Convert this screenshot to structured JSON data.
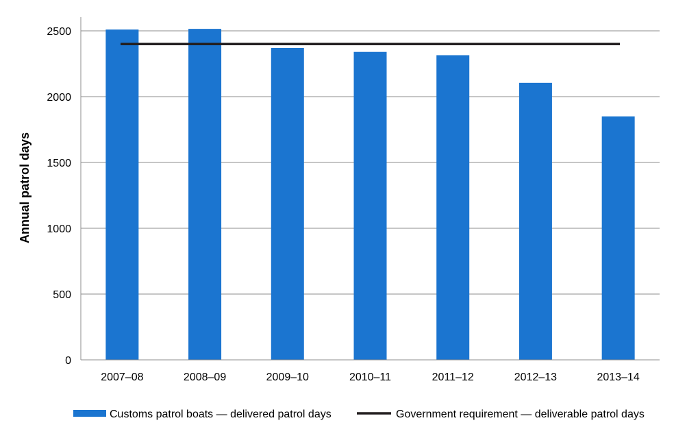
{
  "chart_data": {
    "type": "bar",
    "title": "",
    "xlabel": "",
    "ylabel": "Annual patrol days",
    "ylim": [
      0,
      2500
    ],
    "yticks": [
      0,
      500,
      1000,
      1500,
      2000,
      2500
    ],
    "grid": true,
    "legend_position": "bottom",
    "categories": [
      "2007–08",
      "2008–09",
      "2009–10",
      "2010–11",
      "2011–12",
      "2012–13",
      "2013–14"
    ],
    "series": [
      {
        "name": "Customs patrol boats — delivered patrol days",
        "type": "bar",
        "color": "#1b75d0",
        "values": [
          2510,
          2515,
          2370,
          2340,
          2315,
          2105,
          1850
        ]
      },
      {
        "name": "Government requirement — deliverable patrol days",
        "type": "line",
        "color": "#231f20",
        "values": [
          2400,
          2400,
          2400,
          2400,
          2400,
          2400,
          2400
        ]
      }
    ]
  }
}
